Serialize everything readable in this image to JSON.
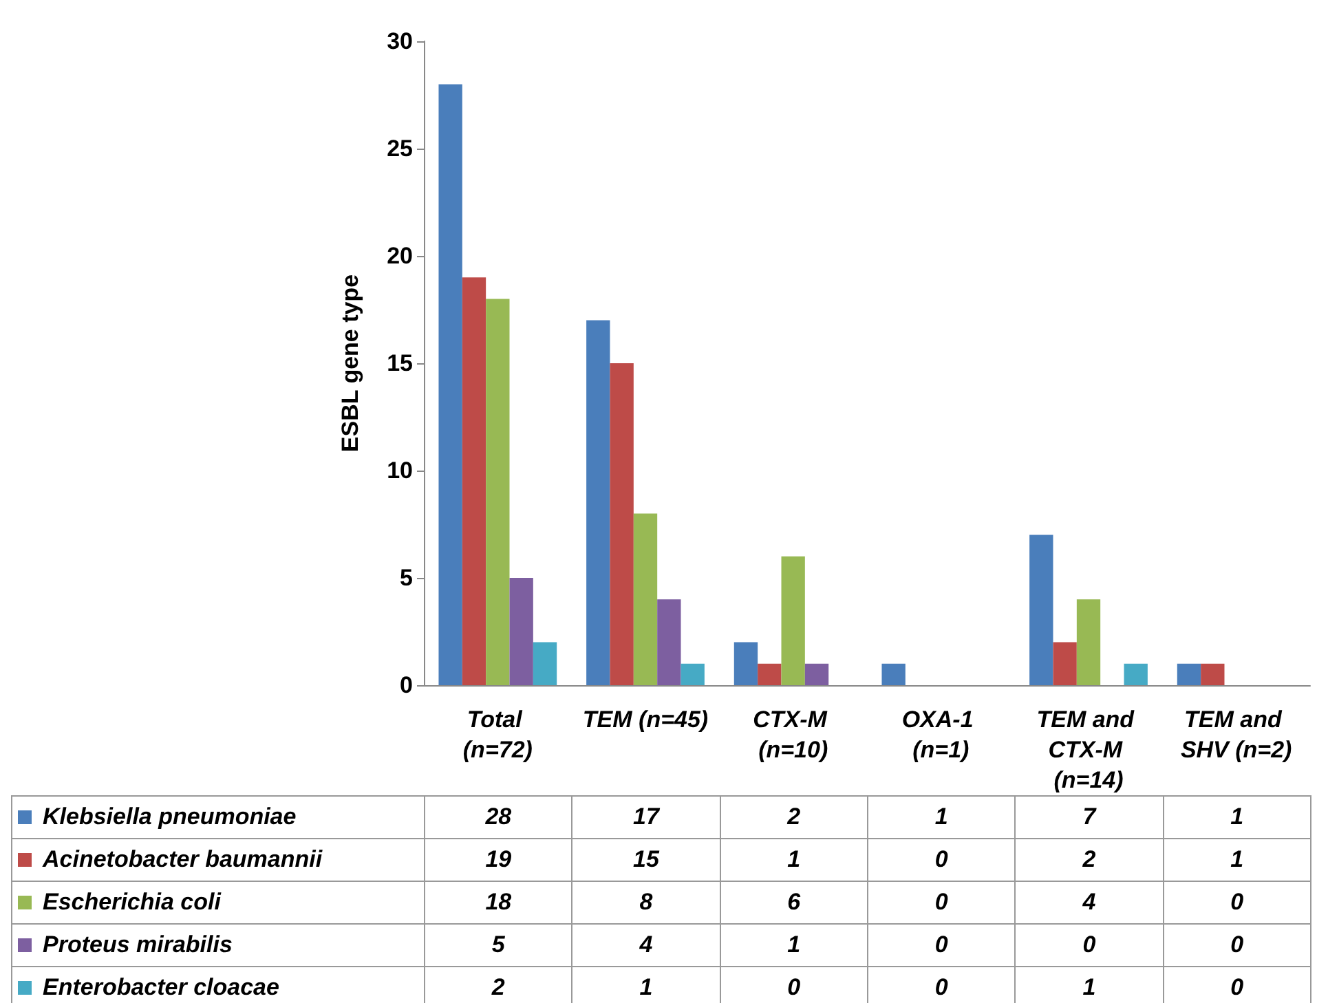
{
  "chart_data": {
    "type": "bar",
    "ylabel": "ESBL gene type",
    "categories": [
      "Total (n=72)",
      "TEM (n=45)",
      "CTX-M (n=10)",
      "OXA-1 (n=1)",
      "TEM and CTX-M (n=14)",
      "TEM and SHV (n=2)"
    ],
    "series": [
      {
        "name": "Klebsiella  pneumoniae",
        "color": "#4a7ebb",
        "values": [
          28,
          17,
          2,
          1,
          7,
          1
        ]
      },
      {
        "name": "Acinetobacter baumannii",
        "color": "#be4b48",
        "values": [
          19,
          15,
          1,
          0,
          2,
          1
        ]
      },
      {
        "name": "Escherichia coli",
        "color": "#98b954",
        "values": [
          18,
          8,
          6,
          0,
          4,
          0
        ]
      },
      {
        "name": "Proteus mirabilis",
        "color": "#7d5fa0",
        "values": [
          5,
          4,
          1,
          0,
          0,
          0
        ]
      },
      {
        "name": "Enterobacter cloacae",
        "color": "#46aac5",
        "values": [
          2,
          1,
          0,
          0,
          1,
          0
        ]
      }
    ],
    "ylim": [
      0,
      30
    ],
    "yticks": [
      0,
      5,
      10,
      15,
      20,
      25,
      30
    ],
    "grid": false,
    "legend": "bottom",
    "data_labels": true
  }
}
